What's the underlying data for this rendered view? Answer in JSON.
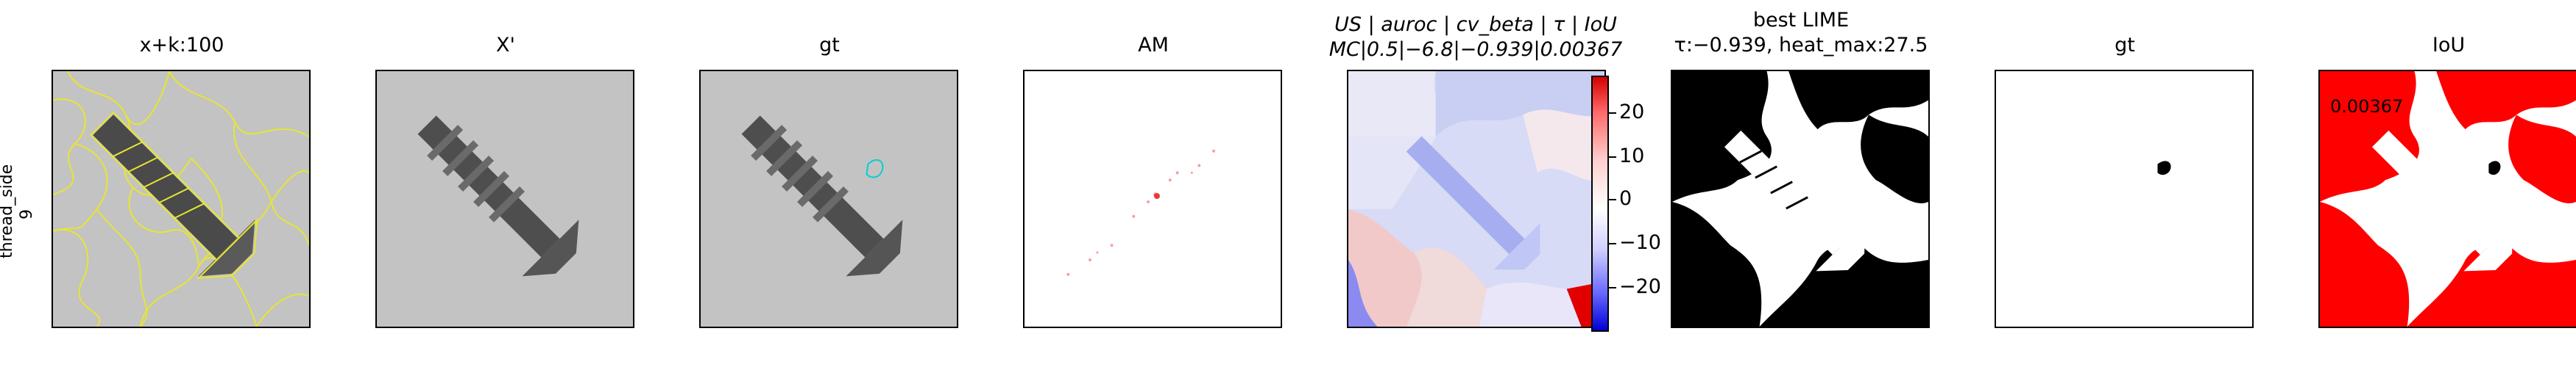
{
  "row_label": {
    "line1": "thread_side",
    "line2": "9"
  },
  "titles": {
    "p1": "x+k:100",
    "p2": "X'",
    "p3": "gt",
    "p4": "AM",
    "p5_line1": "US | auroc | cv_beta | τ | IoU",
    "p5_line2": "MC|0.5|−6.8|−0.939|0.00367",
    "p6_line1": "best LIME",
    "p6_line2": "τ:−0.939, heat_max:27.5",
    "p7": "gt",
    "p8": "IoU"
  },
  "colorbar": {
    "ticks": [
      "20",
      "10",
      "0",
      "−10",
      "−20"
    ]
  },
  "iou_value": "0.00367",
  "colors": {
    "overlay": "#e6e632",
    "gt_contour": "#00d0d0",
    "iou_red": "#ff0000"
  }
}
